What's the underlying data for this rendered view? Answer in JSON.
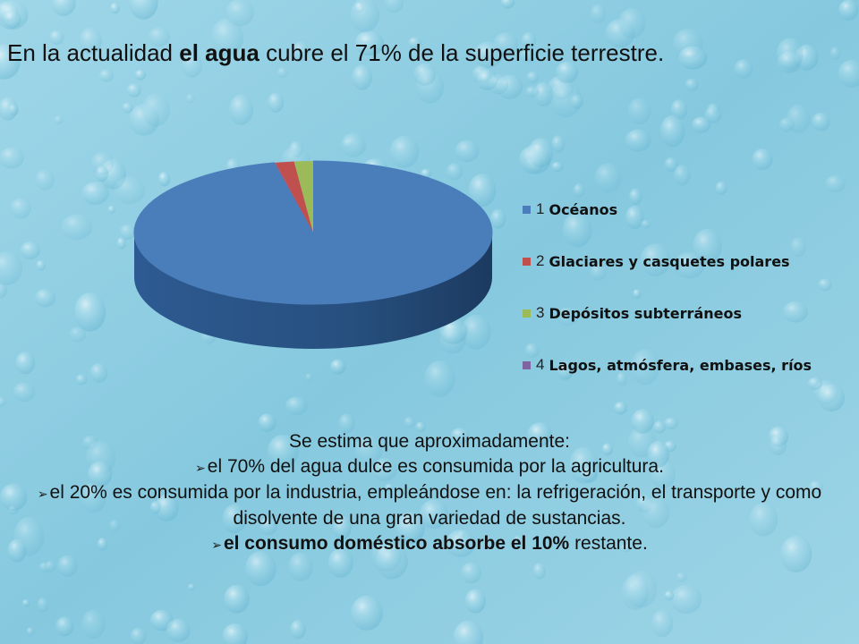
{
  "title": {
    "prefix": "En la actualidad ",
    "bold": "el agua",
    "suffix": " cubre el 71% de la superficie terrestre."
  },
  "chart_data": {
    "type": "pie",
    "title": "",
    "categories": [
      "Océanos",
      "Glaciares y casquetes polares",
      "Depósitos subterráneos",
      "Lagos, atmósfera, embases, ríos"
    ],
    "legend_numbers": [
      "1",
      "2",
      "3",
      "4"
    ],
    "values": [
      96.5,
      1.7,
      1.7,
      0.1
    ],
    "colors": [
      "#4a7ebb",
      "#c0504d",
      "#9bbb59",
      "#8064a2"
    ],
    "legend_position": "right",
    "style": "3d"
  },
  "body": {
    "intro": "Se estima que aproximadamente:",
    "bullet1": "el 70% del agua dulce es consumida por la agricultura.",
    "bullet2": "el 20%  es consumida por la industria, empleándose en: la refrigeración, el transporte y como disolvente de una gran variedad de sustancias.",
    "bullet3_bold": "el consumo doméstico absorbe el 10%",
    "bullet3_rest": " restante."
  }
}
